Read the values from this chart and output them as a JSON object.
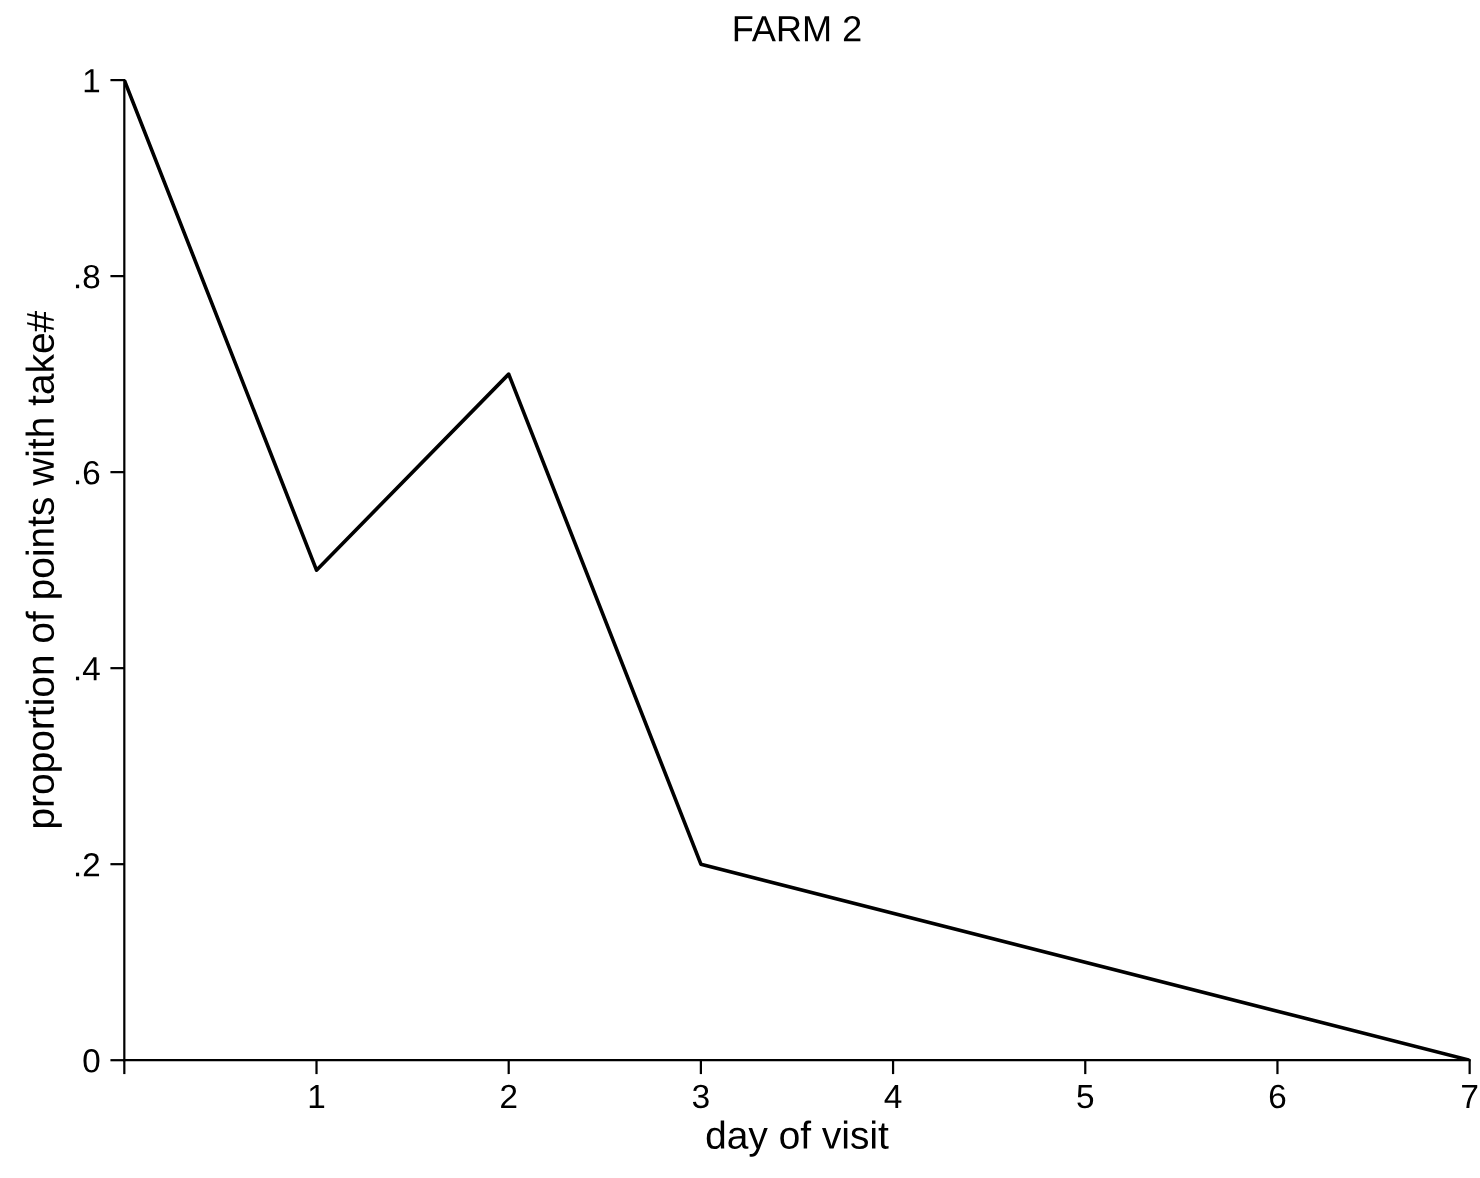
{
  "chart_data": {
    "type": "line",
    "title": "FARM 2",
    "xlabel": "day of visit",
    "ylabel": "proportion of points with take#",
    "x": [
      0,
      1,
      2,
      3,
      7
    ],
    "series": [
      {
        "color": "#000000",
        "values": [
          1,
          0.5,
          0.7,
          0.2,
          0
        ]
      }
    ],
    "xlim": [
      0,
      7
    ],
    "xticks": [
      {
        "value": 0,
        "label": null
      },
      1,
      2,
      3,
      4,
      5,
      6,
      7
    ],
    "ylim": [
      0,
      1
    ],
    "yticks": [
      0,
      {
        "value": 0.2,
        "label": ".2"
      },
      {
        "value": 0.4,
        "label": ".4"
      },
      {
        "value": 0.6,
        "label": ".6"
      },
      {
        "value": 0.8,
        "label": ".8"
      },
      1
    ],
    "grid": false,
    "legend": false,
    "marker": "none",
    "line_style": "solid"
  }
}
